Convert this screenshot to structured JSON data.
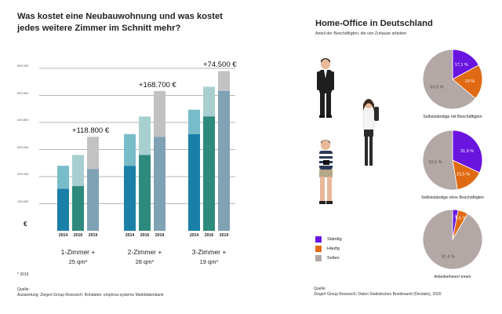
{
  "left": {
    "title_line1": "Was kostet eine Neubauwohnung und was kostet",
    "title_line2": "jedes weitere Zimmer im Schnitt mehr?",
    "currency_symbol": "€",
    "footnote": "* 2019",
    "source_label": "Quelle:",
    "source_text": "Auswertung: Ziegert Group Research; Rohdaten: empirica-systeme Marktdatenbank"
  },
  "right": {
    "title": "Home-Office in Deutschland",
    "subtitle": "Anteil der Beschäftigten, die von Zuhause arbeiten",
    "source_label": "Quelle:",
    "source_text": "Ziegert Group Research; Daten Statistisches Bundesamt (Destatis), 2020"
  },
  "chart_data": [
    {
      "type": "bar",
      "stacked": true,
      "title": "Was kostet eine Neubauwohnung und was kostet jedes weitere Zimmer im Schnitt mehr?",
      "ylabel": "€",
      "ylim": [
        0,
        600000
      ],
      "yticks": [
        100000,
        200000,
        300000,
        400000,
        500000,
        600000
      ],
      "ytick_labels": [
        "100.000",
        "200.000",
        "300.000",
        "400.000",
        "500.000",
        "600.000"
      ],
      "years": [
        "2014",
        "2016",
        "2019"
      ],
      "groups": [
        {
          "name": "1-Zimmer +",
          "sub": "25 qm*",
          "increase_label": "+118.800 €",
          "bars": [
            {
              "year": "2014",
              "base": 155000,
              "top": 240000
            },
            {
              "year": "2016",
              "base": 165000,
              "top": 280000
            },
            {
              "year": "2019",
              "base": 228000,
              "top": 347000
            }
          ]
        },
        {
          "name": "2-Zimmer +",
          "sub": "28 qm*",
          "increase_label": "+168.700 €",
          "bars": [
            {
              "year": "2014",
              "base": 240000,
              "top": 357000
            },
            {
              "year": "2016",
              "base": 280000,
              "top": 422000
            },
            {
              "year": "2019",
              "base": 347000,
              "top": 516000
            }
          ]
        },
        {
          "name": "3-Zimmer +",
          "sub": "19 qm*",
          "increase_label": "+74.500 €",
          "bars": [
            {
              "year": "2014",
              "base": 357000,
              "top": 447000
            },
            {
              "year": "2016",
              "base": 422000,
              "top": 532000
            },
            {
              "year": "2019",
              "base": 516000,
              "top": 590000
            }
          ]
        }
      ]
    },
    {
      "type": "pie",
      "title": "Home-Office in Deutschland",
      "subtitle": "Anteil der Beschäftigten, die von Zuhause arbeiten",
      "legend": [
        {
          "name": "Ständig",
          "color": "#6a14e0"
        },
        {
          "name": "Häufig",
          "color": "#e06a14"
        },
        {
          "name": "Selten",
          "color": "#b3a8a5"
        }
      ],
      "pies": [
        {
          "label": "Selbstständige mit Beschäftigten",
          "slices": [
            {
              "name": "Ständig",
              "value": 17.1,
              "text": "17,1 %"
            },
            {
              "name": "Häufig",
              "value": 19.0,
              "text": "19 %"
            },
            {
              "name": "Selten",
              "value": 63.9,
              "text": "63,9 %"
            }
          ]
        },
        {
          "label": "Selbstständige ohne Beschäftigten",
          "slices": [
            {
              "name": "Ständig",
              "value": 31.9,
              "text": "31,9 %"
            },
            {
              "name": "Häufig",
              "value": 15.5,
              "text": "15,5 %"
            },
            {
              "name": "Selten",
              "value": 52.6,
              "text": "52,6 %"
            }
          ]
        },
        {
          "label": "Arbeitnehmer/-innen",
          "slices": [
            {
              "name": "Ständig",
              "value": 3.0,
              "text": "3 %"
            },
            {
              "name": "Häufig",
              "value": 5.5,
              "text": "5,5 %"
            },
            {
              "name": "Selten",
              "value": 91.4,
              "text": "91,4 %"
            }
          ]
        }
      ]
    }
  ],
  "colors": {
    "base_year": [
      "#1b80a8",
      "#2d8a7c",
      "#7fa2b5"
    ],
    "top_year": [
      "#79bcc9",
      "#a8cfd0",
      "#c2c2c2"
    ],
    "grid": "#6e6e6e"
  }
}
